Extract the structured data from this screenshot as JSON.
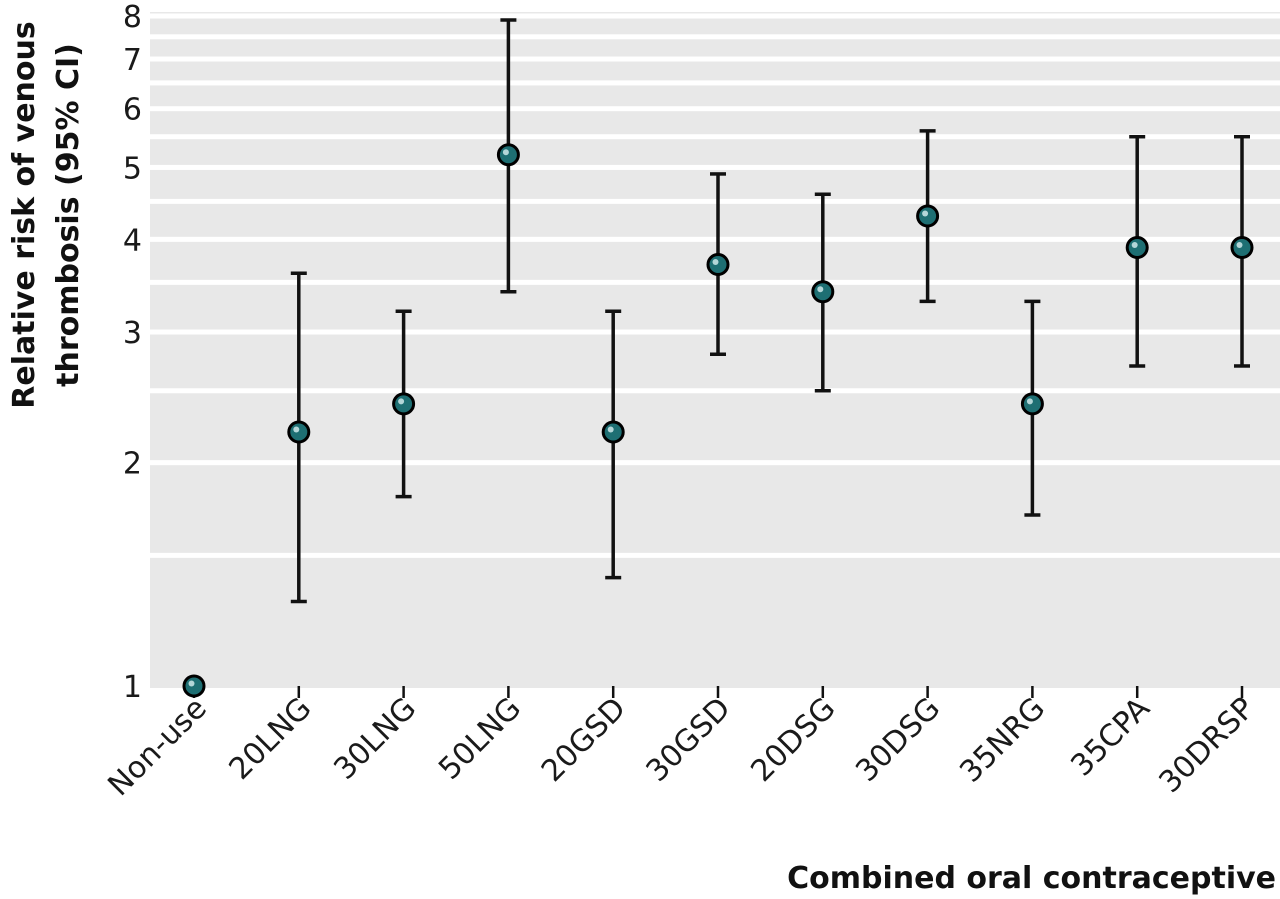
{
  "chart_data": {
    "type": "scatter",
    "title": "",
    "xlabel": "Combined oral contraceptive",
    "ylabel_lines": [
      "Relative risk of venous",
      "thrombosis (95% CI)"
    ],
    "yscale": "log",
    "ylim": [
      1,
      8
    ],
    "yticks": [
      1,
      2,
      3,
      4,
      5,
      6,
      7,
      8
    ],
    "minor_gridlines": [
      1.5,
      2.5,
      3.5,
      4.5,
      5.5,
      6.5,
      7.5
    ],
    "grid": true,
    "legend": "none",
    "colors": {
      "plot_background": "#e8e8e8",
      "gridline": "#ffffff",
      "marker_fill": "#1e6f73",
      "marker_edge": "#000000",
      "error_bar": "#111111"
    },
    "categories": [
      "Non-use",
      "20LNG",
      "30LNG",
      "50LNG",
      "20GSD",
      "30GSD",
      "20DSG",
      "30DSG",
      "35NRG",
      "35CPA",
      "30DRSP"
    ],
    "values": [
      1.0,
      2.2,
      2.4,
      5.2,
      2.2,
      3.7,
      3.4,
      4.3,
      2.4,
      3.9,
      3.9
    ],
    "ci_lower": [
      null,
      1.3,
      1.8,
      3.4,
      1.4,
      2.8,
      2.5,
      3.3,
      1.7,
      2.7,
      2.7
    ],
    "ci_upper": [
      null,
      3.6,
      3.2,
      7.9,
      3.2,
      4.9,
      4.6,
      5.6,
      3.3,
      5.5,
      5.5
    ]
  }
}
